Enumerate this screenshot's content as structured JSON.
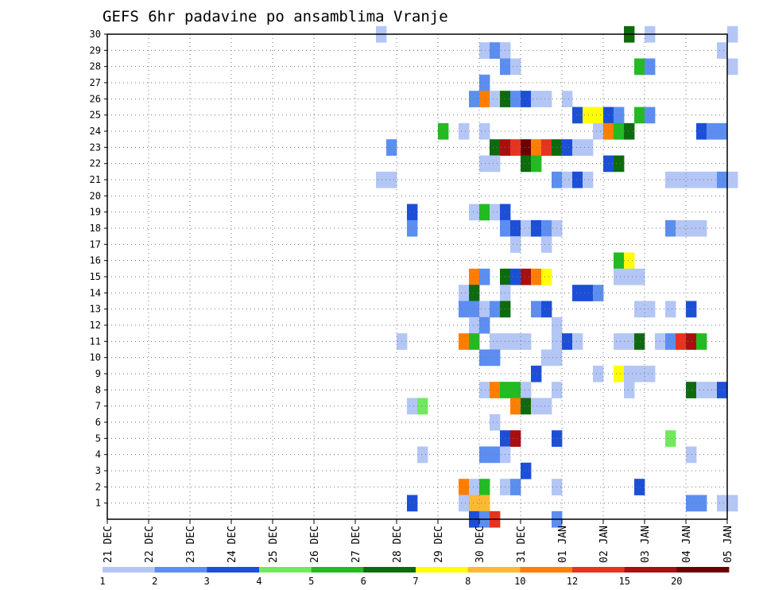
{
  "chart_data": {
    "type": "heatmap",
    "title": "GEFS 6hr padavine po ansamblima Vranje",
    "xlabel": "",
    "ylabel": "",
    "x_tick_labels": [
      "21 DEC",
      "22 DEC",
      "23 DEC",
      "24 DEC",
      "25 DEC",
      "26 DEC",
      "27 DEC",
      "28 DEC",
      "29 DEC",
      "30 DEC",
      "31 DEC",
      "01 JAN",
      "02 JAN",
      "03 JAN",
      "04 JAN",
      "05 JAN"
    ],
    "x_range_days": [
      0,
      15
    ],
    "y_tick_labels": [
      "1",
      "2",
      "3",
      "4",
      "5",
      "6",
      "7",
      "8",
      "9",
      "10",
      "11",
      "12",
      "13",
      "14",
      "15",
      "16",
      "17",
      "18",
      "19",
      "20",
      "21",
      "22",
      "23",
      "24",
      "25",
      "26",
      "27",
      "28",
      "29",
      "30"
    ],
    "y_range": [
      0,
      30
    ],
    "grid": true,
    "colorbar": {
      "levels": [
        "1",
        "2",
        "3",
        "4",
        "5",
        "6",
        "7",
        "8",
        "10",
        "12",
        "15",
        "20"
      ],
      "colors": [
        "#b3c6f5",
        "#5b8ef0",
        "#1c4fd8",
        "#72e85e",
        "#22bb22",
        "#0d6b0d",
        "#ffff00",
        "#ffb836",
        "#ff7e00",
        "#e8321f",
        "#a80f0f",
        "#6b0000"
      ]
    },
    "cells": [
      [
        30,
        6.5,
        0
      ],
      [
        30,
        12.5,
        5
      ],
      [
        30,
        13.0,
        0
      ],
      [
        30,
        15.0,
        0
      ],
      [
        29,
        9.0,
        0
      ],
      [
        29,
        9.25,
        1
      ],
      [
        29,
        9.5,
        0
      ],
      [
        29,
        14.75,
        0
      ],
      [
        28,
        9.5,
        1
      ],
      [
        28,
        9.75,
        0
      ],
      [
        28,
        12.75,
        4
      ],
      [
        28,
        13.0,
        1
      ],
      [
        28,
        15.0,
        0
      ],
      [
        27,
        9.0,
        1
      ],
      [
        26,
        8.75,
        1
      ],
      [
        26,
        9.0,
        8
      ],
      [
        26,
        9.25,
        0
      ],
      [
        26,
        9.5,
        5
      ],
      [
        26,
        9.75,
        1
      ],
      [
        26,
        10.0,
        2
      ],
      [
        26,
        10.25,
        0
      ],
      [
        26,
        10.5,
        0
      ],
      [
        26,
        11.0,
        0
      ],
      [
        25,
        11.25,
        2
      ],
      [
        25,
        11.5,
        6
      ],
      [
        25,
        11.75,
        6
      ],
      [
        25,
        12.0,
        2
      ],
      [
        25,
        12.25,
        1
      ],
      [
        25,
        12.75,
        4
      ],
      [
        25,
        13.0,
        1
      ],
      [
        24,
        8.0,
        4
      ],
      [
        24,
        8.5,
        0
      ],
      [
        24,
        9.0,
        0
      ],
      [
        24,
        11.75,
        0
      ],
      [
        24,
        12.0,
        8
      ],
      [
        24,
        12.25,
        4
      ],
      [
        24,
        12.5,
        5
      ],
      [
        24,
        14.25,
        2
      ],
      [
        24,
        14.5,
        1
      ],
      [
        24,
        14.75,
        1
      ],
      [
        23,
        6.75,
        1
      ],
      [
        23,
        9.25,
        5
      ],
      [
        23,
        9.5,
        10
      ],
      [
        23,
        9.75,
        9
      ],
      [
        23,
        10.0,
        11
      ],
      [
        23,
        10.25,
        8
      ],
      [
        23,
        10.5,
        9
      ],
      [
        23,
        10.75,
        5
      ],
      [
        23,
        11.0,
        2
      ],
      [
        23,
        11.25,
        0
      ],
      [
        23,
        11.5,
        0
      ],
      [
        22,
        9.0,
        0
      ],
      [
        22,
        9.25,
        0
      ],
      [
        22,
        10.0,
        5
      ],
      [
        22,
        10.25,
        4
      ],
      [
        22,
        12.0,
        2
      ],
      [
        22,
        12.25,
        5
      ],
      [
        21,
        6.5,
        0
      ],
      [
        21,
        6.75,
        0
      ],
      [
        21,
        10.75,
        1
      ],
      [
        21,
        11.0,
        0
      ],
      [
        21,
        11.25,
        2
      ],
      [
        21,
        11.5,
        0
      ],
      [
        21,
        13.5,
        0
      ],
      [
        21,
        13.75,
        0
      ],
      [
        21,
        14.0,
        0
      ],
      [
        21,
        14.25,
        0
      ],
      [
        21,
        14.5,
        0
      ],
      [
        21,
        14.75,
        1
      ],
      [
        21,
        15.0,
        0
      ],
      [
        19,
        7.25,
        2
      ],
      [
        19,
        8.75,
        0
      ],
      [
        19,
        9.0,
        4
      ],
      [
        19,
        9.25,
        0
      ],
      [
        19,
        9.5,
        2
      ],
      [
        18,
        7.25,
        1
      ],
      [
        18,
        9.5,
        1
      ],
      [
        18,
        9.75,
        2
      ],
      [
        18,
        10.0,
        0
      ],
      [
        18,
        10.25,
        2
      ],
      [
        18,
        10.5,
        1
      ],
      [
        18,
        10.75,
        0
      ],
      [
        18,
        13.5,
        1
      ],
      [
        18,
        13.75,
        0
      ],
      [
        18,
        14.0,
        0
      ],
      [
        18,
        14.25,
        0
      ],
      [
        17,
        9.75,
        0
      ],
      [
        17,
        10.5,
        0
      ],
      [
        16,
        12.25,
        4
      ],
      [
        16,
        12.5,
        6
      ],
      [
        15,
        8.75,
        8
      ],
      [
        15,
        9.0,
        1
      ],
      [
        15,
        9.5,
        5
      ],
      [
        15,
        9.75,
        2
      ],
      [
        15,
        10.0,
        10
      ],
      [
        15,
        10.25,
        8
      ],
      [
        15,
        10.5,
        6
      ],
      [
        15,
        12.25,
        0
      ],
      [
        15,
        12.5,
        0
      ],
      [
        15,
        12.75,
        0
      ],
      [
        14,
        8.5,
        0
      ],
      [
        14,
        8.75,
        5
      ],
      [
        14,
        9.5,
        0
      ],
      [
        14,
        11.25,
        2
      ],
      [
        14,
        11.5,
        2
      ],
      [
        14,
        11.75,
        1
      ],
      [
        13,
        8.5,
        1
      ],
      [
        13,
        8.75,
        1
      ],
      [
        13,
        9.0,
        0
      ],
      [
        13,
        9.25,
        1
      ],
      [
        13,
        9.5,
        5
      ],
      [
        13,
        10.25,
        1
      ],
      [
        13,
        10.5,
        2
      ],
      [
        13,
        12.75,
        0
      ],
      [
        13,
        13.0,
        0
      ],
      [
        13,
        13.5,
        0
      ],
      [
        13,
        14.0,
        2
      ],
      [
        12,
        8.75,
        0
      ],
      [
        12,
        9.0,
        1
      ],
      [
        12,
        10.75,
        0
      ],
      [
        11,
        7.0,
        0
      ],
      [
        11,
        8.5,
        8
      ],
      [
        11,
        8.75,
        4
      ],
      [
        11,
        9.25,
        0
      ],
      [
        11,
        9.5,
        0
      ],
      [
        11,
        9.75,
        0
      ],
      [
        11,
        10.0,
        0
      ],
      [
        11,
        10.75,
        0
      ],
      [
        11,
        11.0,
        2
      ],
      [
        11,
        11.25,
        0
      ],
      [
        11,
        12.25,
        0
      ],
      [
        11,
        12.5,
        0
      ],
      [
        11,
        12.75,
        5
      ],
      [
        11,
        13.25,
        0
      ],
      [
        11,
        13.5,
        1
      ],
      [
        11,
        13.75,
        9
      ],
      [
        11,
        14.0,
        10
      ],
      [
        11,
        14.25,
        4
      ],
      [
        10,
        9.0,
        1
      ],
      [
        10,
        9.25,
        1
      ],
      [
        10,
        10.5,
        0
      ],
      [
        10,
        10.75,
        0
      ],
      [
        9,
        10.25,
        2
      ],
      [
        9,
        11.75,
        0
      ],
      [
        9,
        12.25,
        6
      ],
      [
        9,
        12.5,
        0
      ],
      [
        9,
        12.75,
        0
      ],
      [
        9,
        13.0,
        0
      ],
      [
        8,
        9.0,
        0
      ],
      [
        8,
        9.25,
        8
      ],
      [
        8,
        9.5,
        4
      ],
      [
        8,
        9.75,
        4
      ],
      [
        8,
        10.0,
        0
      ],
      [
        8,
        10.75,
        0
      ],
      [
        8,
        12.5,
        0
      ],
      [
        8,
        14.0,
        5
      ],
      [
        8,
        14.25,
        0
      ],
      [
        8,
        14.5,
        0
      ],
      [
        8,
        14.75,
        2
      ],
      [
        7,
        7.25,
        0
      ],
      [
        7,
        7.5,
        3
      ],
      [
        7,
        9.75,
        8
      ],
      [
        7,
        10.0,
        5
      ],
      [
        7,
        10.25,
        0
      ],
      [
        7,
        10.5,
        0
      ],
      [
        6,
        9.25,
        0
      ],
      [
        5,
        9.5,
        2
      ],
      [
        5,
        9.75,
        10
      ],
      [
        5,
        10.75,
        2
      ],
      [
        5,
        13.5,
        3
      ],
      [
        4,
        7.5,
        0
      ],
      [
        4,
        9.0,
        1
      ],
      [
        4,
        9.25,
        1
      ],
      [
        4,
        9.5,
        0
      ],
      [
        4,
        14.0,
        0
      ],
      [
        3,
        10.0,
        2
      ],
      [
        2,
        8.5,
        8
      ],
      [
        2,
        8.75,
        0
      ],
      [
        2,
        9.0,
        4
      ],
      [
        2,
        9.5,
        0
      ],
      [
        2,
        9.75,
        1
      ],
      [
        2,
        10.75,
        0
      ],
      [
        2,
        12.75,
        2
      ],
      [
        1,
        7.25,
        2
      ],
      [
        1,
        8.5,
        0
      ],
      [
        1,
        8.75,
        7
      ],
      [
        1,
        9.0,
        7
      ],
      [
        1,
        14.0,
        1
      ],
      [
        1,
        14.25,
        1
      ],
      [
        1,
        14.75,
        0
      ],
      [
        1,
        15.0,
        0
      ],
      [
        0,
        8.75,
        2
      ],
      [
        0,
        9.0,
        1
      ],
      [
        0,
        9.25,
        9
      ],
      [
        0,
        10.75,
        1
      ]
    ]
  }
}
